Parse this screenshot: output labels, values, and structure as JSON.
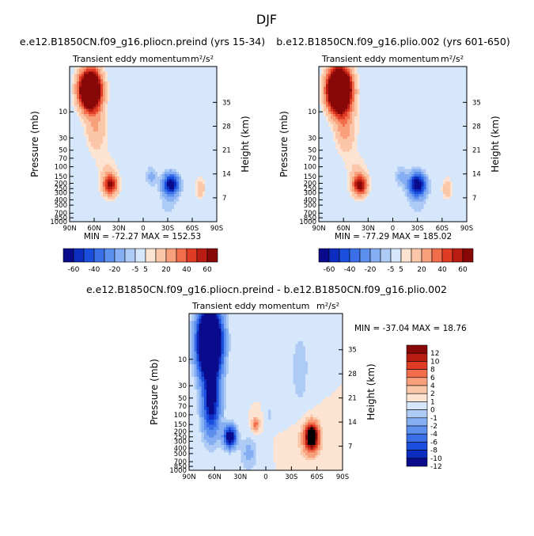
{
  "figure_title": "DJF",
  "chart_data": [
    {
      "type": "heatmap",
      "title": "e.e12.B1850CN.f09_g16.pliocn.preind (yrs 15-34)",
      "subtitle": "Transient eddy momentum",
      "units": "m²/s²",
      "xlabel": "",
      "ylabel": "Pressure (mb)",
      "ylabel_right": "Height (km)",
      "x_ticks": [
        "90N",
        "60N",
        "30N",
        "0",
        "30S",
        "60S",
        "90S"
      ],
      "y_ticks": [
        "10",
        "30",
        "50",
        "70",
        "100",
        "150",
        "200",
        "250",
        "300",
        "400",
        "500",
        "700",
        "850",
        "1000"
      ],
      "y_ticks_right": [
        "35",
        "28",
        "21",
        "14",
        "7"
      ],
      "stats": "MIN = -72.27   MAX = 152.53",
      "blobs": [
        {
          "lat": 65,
          "p": 4,
          "sigma_lat": 9,
          "sigma_p": 0.55,
          "value": 150
        },
        {
          "lat": 58,
          "p": 20,
          "sigma_lat": 9,
          "sigma_p": 0.7,
          "value": 20
        },
        {
          "lat": 40,
          "p": 215,
          "sigma_lat": 6,
          "sigma_p": 0.3,
          "value": 60
        },
        {
          "lat": 44,
          "p": 120,
          "sigma_lat": 9,
          "sigma_p": 0.55,
          "value": 10
        },
        {
          "lat": -34,
          "p": 210,
          "sigma_lat": 6.5,
          "sigma_p": 0.3,
          "value": -72
        },
        {
          "lat": -10,
          "p": 150,
          "sigma_lat": 5,
          "sigma_p": 0.3,
          "value": -12
        },
        {
          "lat": -70,
          "p": 250,
          "sigma_lat": 4,
          "sigma_p": 0.3,
          "value": 18
        },
        {
          "lat": -30,
          "p": 500,
          "sigma_lat": 10,
          "sigma_p": 0.5,
          "value": -6
        },
        {
          "lat": 80,
          "p": 80,
          "sigma_lat": 8,
          "sigma_p": 1.0,
          "value": -4
        },
        {
          "lat": -60,
          "p": 20,
          "sigma_lat": 15,
          "sigma_p": 1.2,
          "value": 4
        }
      ]
    },
    {
      "type": "heatmap",
      "title": "b.e12.B1850CN.f09_g16.plio.002 (yrs 601-650)",
      "subtitle": "Transient eddy momentum",
      "units": "m²/s²",
      "xlabel": "",
      "ylabel": "Pressure (mb)",
      "ylabel_right": "Height (km)",
      "x_ticks": [
        "90N",
        "60N",
        "30N",
        "0",
        "30S",
        "60S",
        "90S"
      ],
      "y_ticks": [
        "10",
        "30",
        "50",
        "70",
        "100",
        "150",
        "200",
        "250",
        "300",
        "400",
        "500",
        "700",
        "850",
        "1000"
      ],
      "y_ticks_right": [
        "35",
        "28",
        "21",
        "14",
        "7"
      ],
      "stats": "MIN = -77.29   MAX = 185.02",
      "blobs": [
        {
          "lat": 65,
          "p": 4,
          "sigma_lat": 9.5,
          "sigma_p": 0.6,
          "value": 180
        },
        {
          "lat": 58,
          "p": 20,
          "sigma_lat": 9,
          "sigma_p": 0.7,
          "value": 24
        },
        {
          "lat": 40,
          "p": 215,
          "sigma_lat": 6,
          "sigma_p": 0.3,
          "value": 65
        },
        {
          "lat": 44,
          "p": 120,
          "sigma_lat": 9,
          "sigma_p": 0.55,
          "value": 10
        },
        {
          "lat": -30,
          "p": 210,
          "sigma_lat": 7,
          "sigma_p": 0.32,
          "value": -77
        },
        {
          "lat": -10,
          "p": 150,
          "sigma_lat": 5,
          "sigma_p": 0.3,
          "value": -12
        },
        {
          "lat": -66,
          "p": 250,
          "sigma_lat": 4,
          "sigma_p": 0.3,
          "value": 18
        },
        {
          "lat": -30,
          "p": 500,
          "sigma_lat": 10,
          "sigma_p": 0.5,
          "value": -6
        },
        {
          "lat": 80,
          "p": 80,
          "sigma_lat": 8,
          "sigma_p": 1.0,
          "value": -4
        },
        {
          "lat": -60,
          "p": 20,
          "sigma_lat": 15,
          "sigma_p": 1.2,
          "value": 4
        }
      ]
    },
    {
      "type": "heatmap",
      "title": "e.e12.B1850CN.f09_g16.pliocn.preind - b.e12.B1850CN.f09_g16.plio.002",
      "subtitle": "Transient eddy momentum",
      "units": "m²/s²",
      "xlabel": "",
      "ylabel": "Pressure (mb)",
      "ylabel_right": "Height (km)",
      "x_ticks": [
        "90N",
        "60N",
        "30N",
        "0",
        "30S",
        "60S",
        "90S"
      ],
      "y_ticks": [
        "10",
        "30",
        "50",
        "70",
        "100",
        "150",
        "200",
        "250",
        "300",
        "400",
        "500",
        "700",
        "850",
        "1000"
      ],
      "y_ticks_right": [
        "35",
        "28",
        "21",
        "14",
        "7"
      ],
      "stats": "MIN = -37.04   MAX = 18.76",
      "blobs": [
        {
          "lat": 66,
          "p": 5,
          "sigma_lat": 9,
          "sigma_p": 0.9,
          "value": -37
        },
        {
          "lat": 64,
          "p": 60,
          "sigma_lat": 7,
          "sigma_p": 0.9,
          "value": -14
        },
        {
          "lat": 42,
          "p": 250,
          "sigma_lat": 5,
          "sigma_p": 0.3,
          "value": -16
        },
        {
          "lat": 12,
          "p": 150,
          "sigma_lat": 3,
          "sigma_p": 0.2,
          "value": 5
        },
        {
          "lat": -4,
          "p": 100,
          "sigma_lat": 2.5,
          "sigma_p": 0.2,
          "value": -1.5
        },
        {
          "lat": -54,
          "p": 250,
          "sigma_lat": 5,
          "sigma_p": 0.35,
          "value": 18
        },
        {
          "lat": -50,
          "p": 300,
          "sigma_lat": 10,
          "sigma_p": 0.6,
          "value": 2
        },
        {
          "lat": -40,
          "p": 15,
          "sigma_lat": 9,
          "sigma_p": 1.3,
          "value": -1.5
        },
        {
          "lat": 20,
          "p": 500,
          "sigma_lat": 7,
          "sigma_p": 0.5,
          "value": -2.5
        }
      ]
    }
  ],
  "colorbar_top": {
    "labels": [
      "-60",
      "-40",
      "-20",
      "-5",
      "5",
      "20",
      "40",
      "60"
    ],
    "levels": [
      -60,
      -50,
      -40,
      -30,
      -20,
      -10,
      -5,
      5,
      10,
      20,
      30,
      40,
      50,
      60
    ],
    "colors": [
      "#0a0a8c",
      "#0c2dbf",
      "#1a4fdd",
      "#3b6fe8",
      "#5d8fef",
      "#85aef3",
      "#aecbf6",
      "#d6e6fb",
      "#fde3d2",
      "#fcc7a8",
      "#f8a07b",
      "#f26d4b",
      "#df3b25",
      "#b81c13",
      "#880808"
    ]
  },
  "colorbar_bottom": {
    "labels": [
      "12",
      "10",
      "8",
      "6",
      "4",
      "2",
      "1",
      "0",
      "-1",
      "-2",
      "-4",
      "-6",
      "-8",
      "-10",
      "-12"
    ],
    "levels": [
      -12,
      -10,
      -8,
      -6,
      -4,
      -2,
      -1,
      0,
      1,
      2,
      4,
      6,
      8,
      10,
      12
    ],
    "colors": [
      "#0a0a8c",
      "#0c2dbf",
      "#1a4fdd",
      "#3b6fe8",
      "#5d8fef",
      "#85aef3",
      "#aecbf6",
      "#d6e6fb",
      "#fde3d2",
      "#fcc7a8",
      "#f8a07b",
      "#f26d4b",
      "#df3b25",
      "#b81c13",
      "#880808"
    ]
  }
}
